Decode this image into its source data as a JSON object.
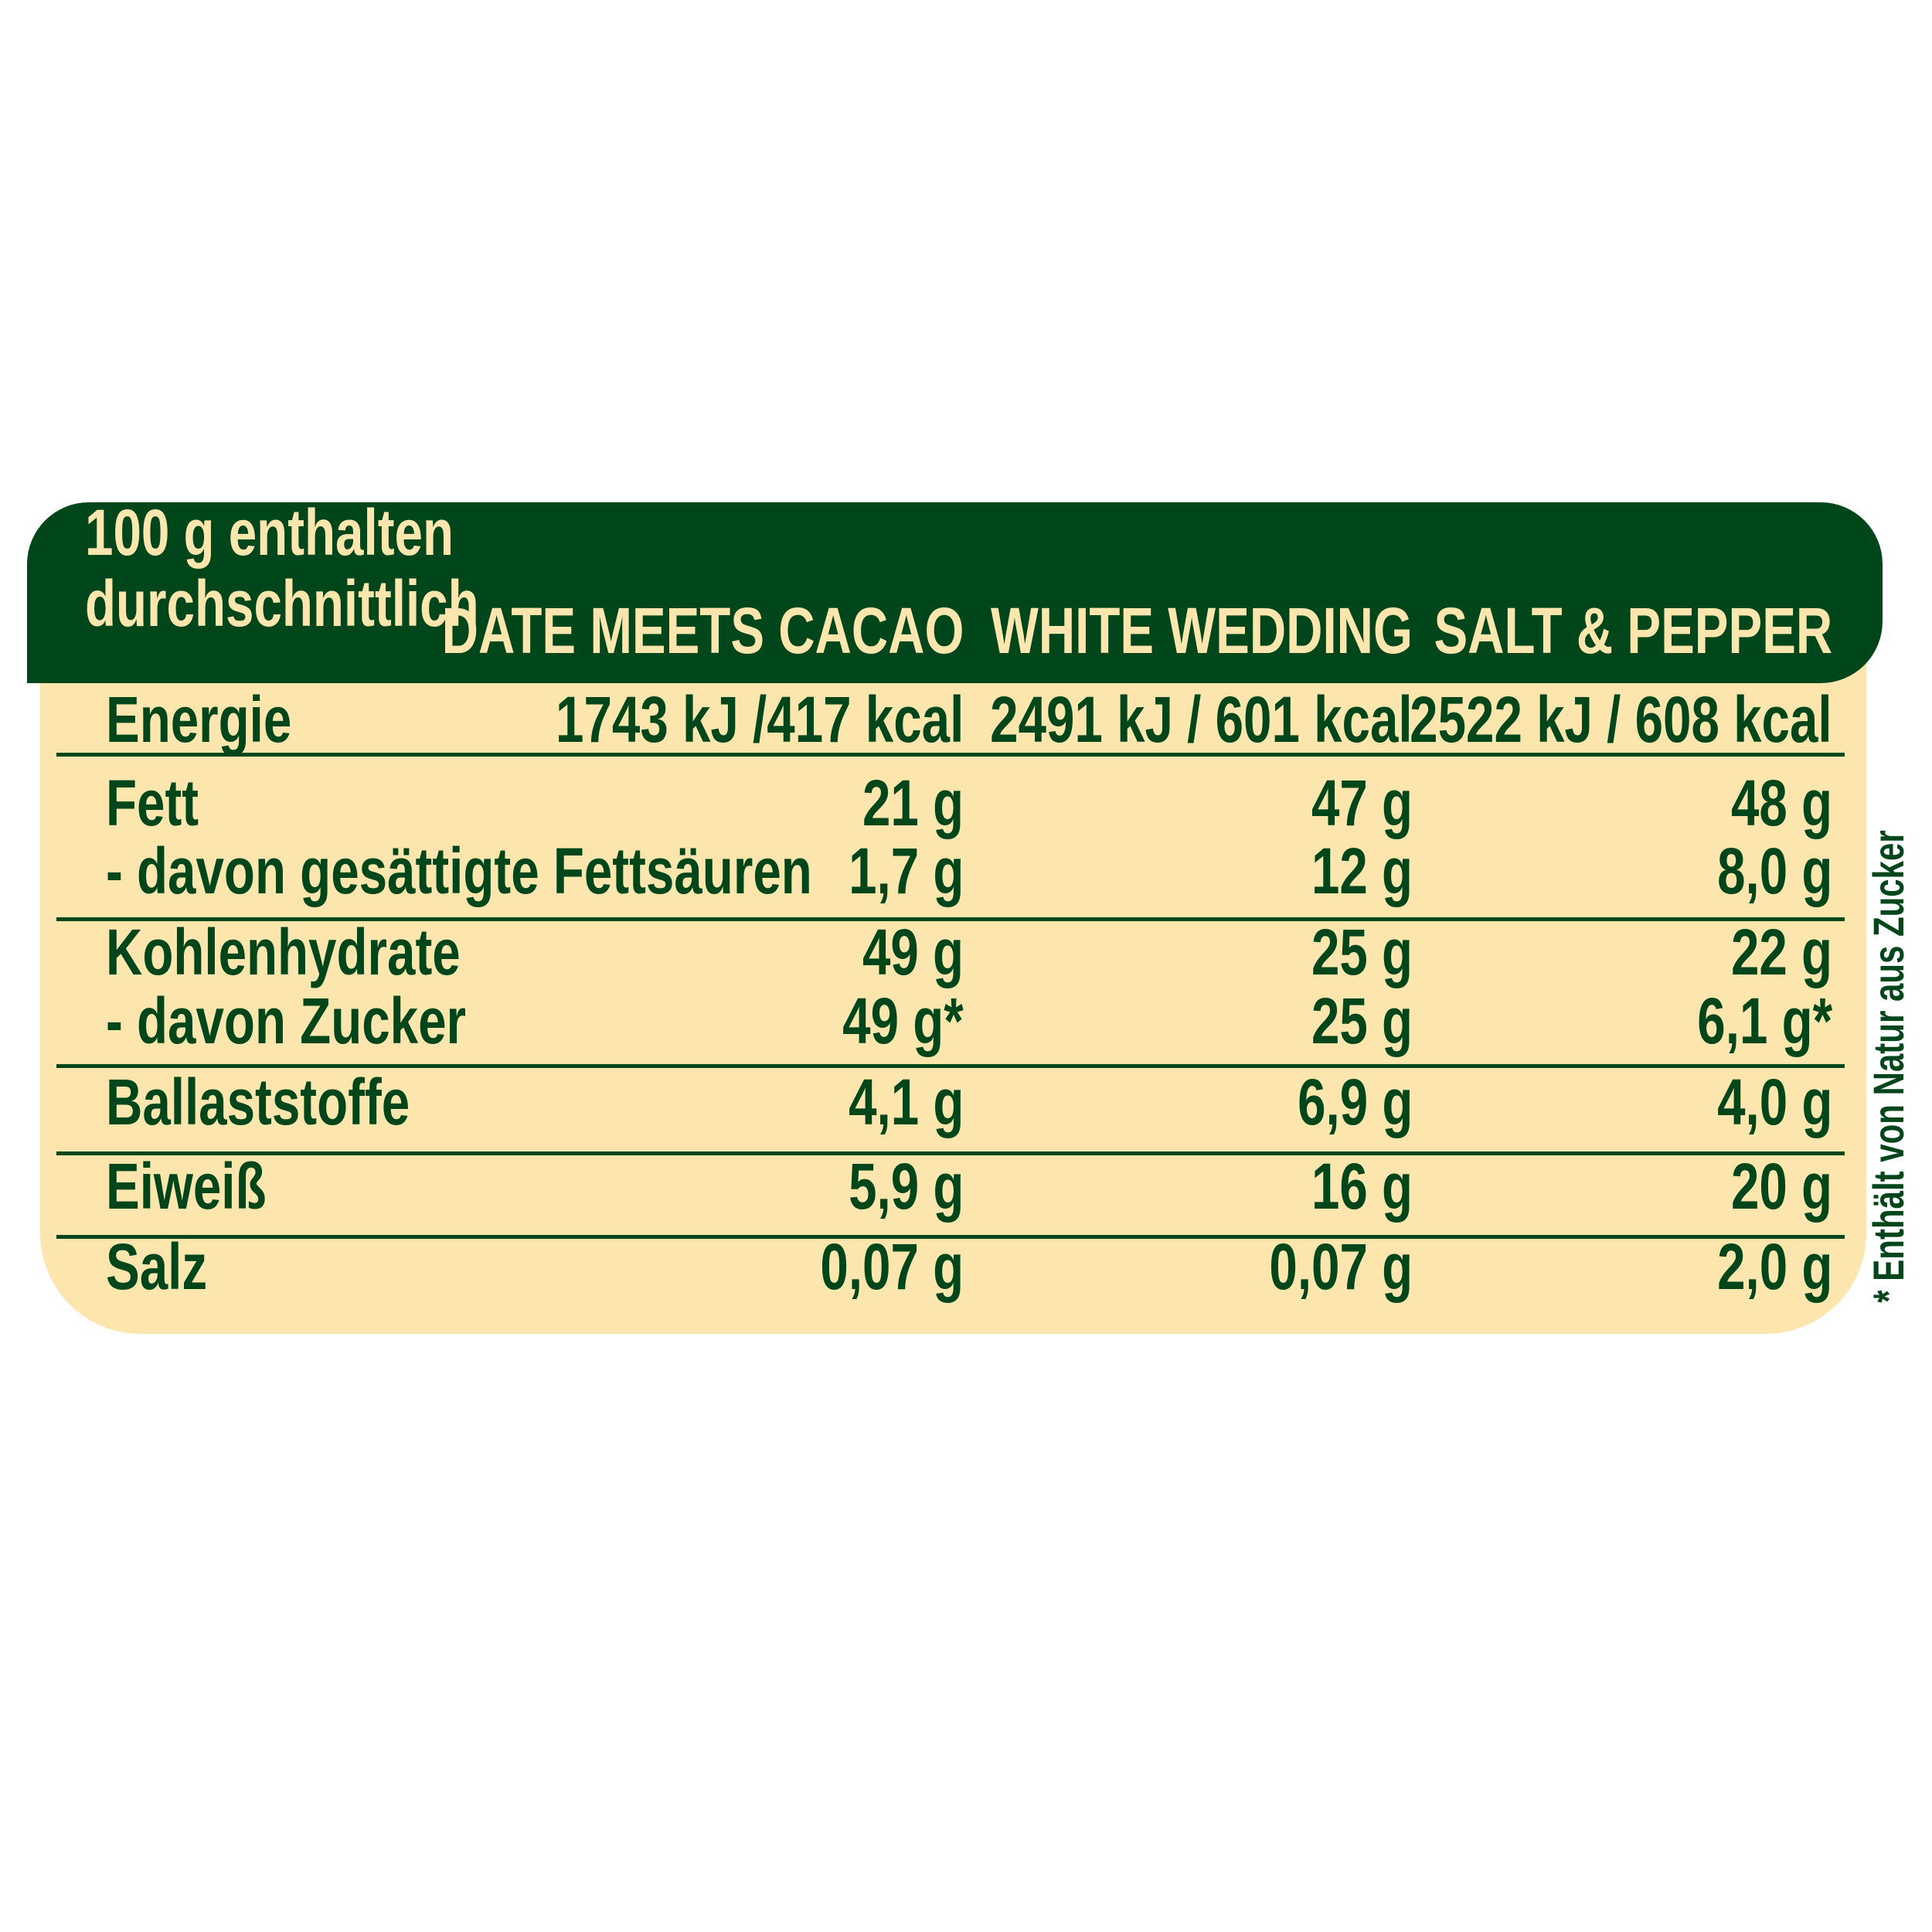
{
  "header": {
    "title_line1": "100 g enthalten",
    "title_line2": "durchschnittlich",
    "columns": [
      "DATE MEETS CACAO",
      "WHITE WEDDING",
      "SALT & PEPPER"
    ]
  },
  "rows": [
    {
      "label": "Energie",
      "values": [
        "1743 kJ /417 kcal",
        "2491 kJ / 601 kcal",
        "2522 kJ / 608 kcal"
      ]
    },
    {
      "label": "Fett",
      "values": [
        "21 g",
        "47 g",
        "48 g"
      ]
    },
    {
      "label": "- davon gesättigte Fettsäuren",
      "values": [
        "1,7 g",
        "12 g",
        "8,0 g"
      ]
    },
    {
      "label": "Kohlenhydrate",
      "values": [
        "49 g",
        "25 g",
        "22 g"
      ]
    },
    {
      "label": "- davon Zucker",
      "values": [
        "49 g*",
        "25 g",
        "6,1 g*"
      ]
    },
    {
      "label": "Ballaststoffe",
      "values": [
        "4,1 g",
        "6,9 g",
        "4,0 g"
      ]
    },
    {
      "label": "Eiweiß",
      "values": [
        "5,9 g",
        "16 g",
        "20 g"
      ]
    },
    {
      "label": "Salz",
      "values": [
        "0,07 g",
        "0,07 g",
        "2,0 g"
      ]
    }
  ],
  "footnote": "* Enthält von Natur aus Zucker",
  "colors": {
    "dark_green": "#00461b",
    "cream": "#fde6ae"
  }
}
